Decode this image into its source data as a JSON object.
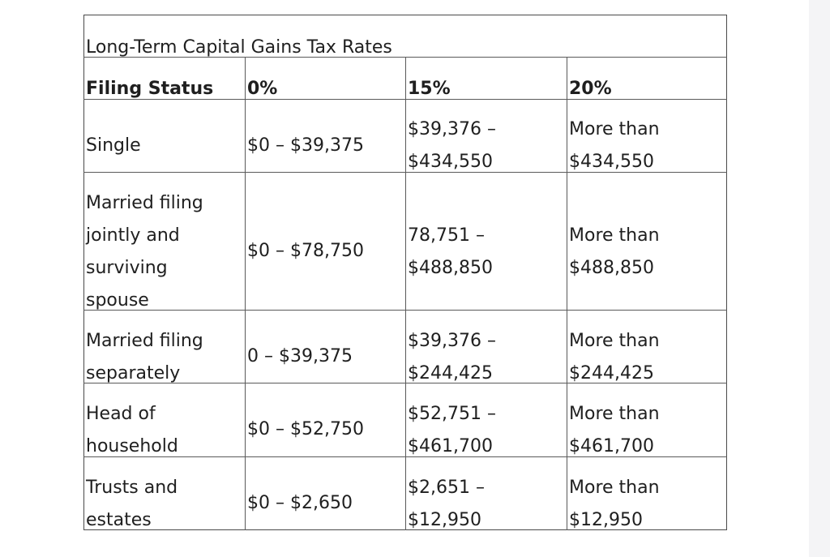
{
  "table": {
    "title": "Long-Term Capital Gains Tax Rates",
    "headers": [
      "Filing Status",
      "0%",
      "15%",
      "20%"
    ],
    "rows": [
      {
        "status": [
          "Single"
        ],
        "zero": [
          "$0 – $39,375"
        ],
        "fifteen": [
          "$39,376 –",
          "$434,550"
        ],
        "twenty": [
          "More than",
          "$434,550"
        ]
      },
      {
        "status": [
          "Married filing",
          "jointly and",
          "surviving",
          "spouse"
        ],
        "zero": [
          "$0 – $78,750"
        ],
        "fifteen": [
          "78,751 –",
          "$488,850"
        ],
        "twenty": [
          "More than",
          "$488,850"
        ]
      },
      {
        "status": [
          "Married filing",
          "separately"
        ],
        "zero": [
          "0 – $39,375"
        ],
        "fifteen": [
          "$39,376 –",
          "$244,425"
        ],
        "twenty": [
          "More than",
          "$244,425"
        ]
      },
      {
        "status": [
          "Head of",
          "household"
        ],
        "zero": [
          "$0 – $52,750"
        ],
        "fifteen": [
          "$52,751 –",
          "$461,700"
        ],
        "twenty": [
          "More than",
          "$461,700"
        ]
      },
      {
        "status": [
          "Trusts and",
          "estates"
        ],
        "zero": [
          "$0 – $2,650"
        ],
        "fifteen": [
          "$2,651 –",
          "$12,950"
        ],
        "twenty": [
          "More than",
          "$12,950"
        ]
      }
    ]
  }
}
